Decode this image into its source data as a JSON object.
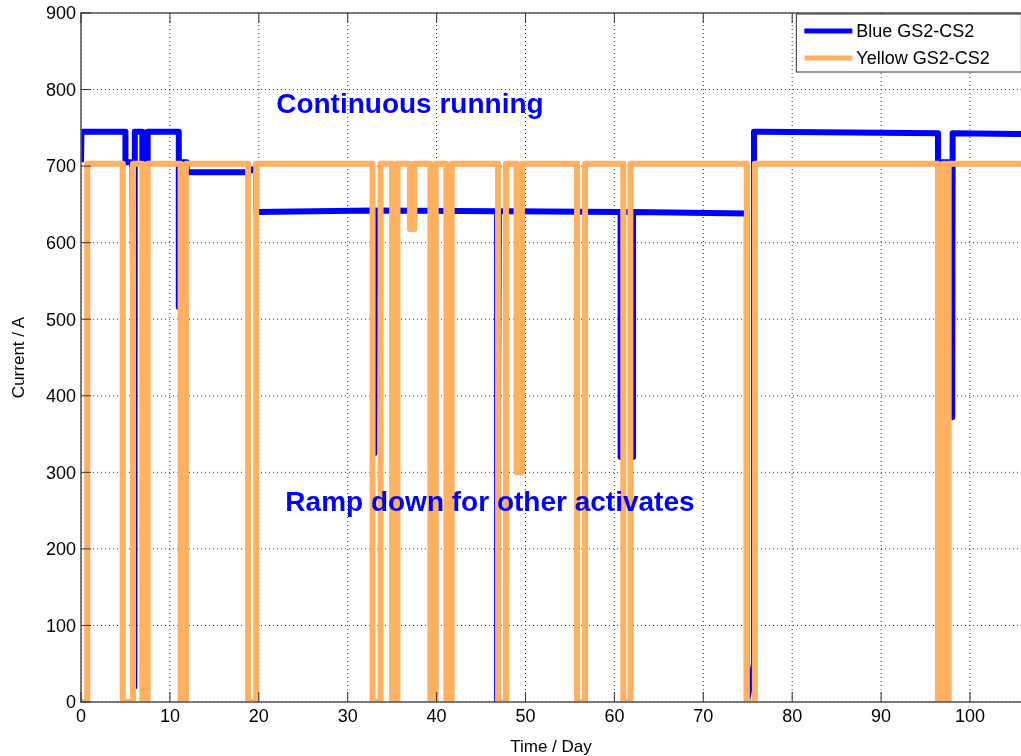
{
  "chart_data": {
    "type": "line",
    "xlabel": "Time / Day",
    "ylabel": "Current / A",
    "xlim": [
      0,
      106
    ],
    "ylim": [
      0,
      900
    ],
    "xticks": [
      0,
      10,
      20,
      30,
      40,
      50,
      60,
      70,
      80,
      90,
      100
    ],
    "yticks": [
      0,
      100,
      200,
      300,
      400,
      500,
      600,
      700,
      800,
      900
    ],
    "grid": true,
    "legend": "top right",
    "line_style": "solid",
    "annotations": [
      "Continuous running",
      "Ramp down for other activates"
    ],
    "series": [
      {
        "name": "Blue GS2-CS2",
        "color": "#0000ff",
        "x": [
          0,
          0.05,
          5.0,
          5.0,
          5.8,
          6.0,
          6.05,
          6.9,
          6.9,
          7.5,
          7.5,
          11.0,
          11.0,
          11.1,
          11.9,
          11.9,
          18.7,
          19.7,
          19.7,
          32.9,
          33.0,
          33.1,
          46.8,
          46.8,
          46.9,
          47.0,
          60.7,
          60.7,
          60.8,
          61.9,
          62.1,
          62.1,
          74.9,
          74.9,
          75.7,
          75.7,
          96.4,
          96.4,
          97.9,
          98.0,
          98.05,
          106
        ],
        "values": [
          705,
          745,
          745,
          705,
          705,
          20,
          745,
          745,
          705,
          705,
          745,
          745,
          516,
          705,
          705,
          692,
          692,
          698,
          640,
          642,
          325,
          642,
          641,
          0,
          350,
          641,
          640,
          320,
          640,
          640,
          320,
          640,
          638,
          0,
          50,
          745,
          743,
          705,
          705,
          372,
          743,
          742
        ]
      },
      {
        "name": "Yellow GS2-CS2",
        "color": "#ffb060",
        "x": [
          0,
          0.7,
          0.7,
          4.7,
          4.7,
          5.85,
          5.85,
          6.9,
          6.9,
          7.5,
          7.5,
          11.2,
          11.2,
          11.8,
          11.8,
          18.8,
          18.8,
          19.7,
          19.7,
          32.8,
          32.8,
          33.7,
          33.7,
          35.0,
          35.0,
          35.6,
          35.6,
          37.0,
          37.0,
          37.5,
          37.5,
          39.3,
          39.3,
          39.9,
          39.9,
          41.1,
          41.1,
          41.7,
          41.7,
          46.9,
          46.9,
          47.8,
          47.8,
          49.0,
          49.0,
          49.6,
          49.6,
          55.8,
          55.8,
          56.7,
          56.7,
          61.0,
          61.0,
          61.8,
          61.8,
          74.9,
          74.9,
          75.8,
          75.8,
          96.4,
          96.4,
          97.0,
          97.0,
          97.2,
          97.2,
          97.6,
          97.6,
          106
        ],
        "values": [
          0,
          0,
          703,
          703,
          0,
          0,
          703,
          703,
          0,
          0,
          703,
          703,
          0,
          0,
          703,
          703,
          0,
          0,
          703,
          703,
          0,
          0,
          703,
          703,
          0,
          0,
          703,
          703,
          618,
          618,
          703,
          703,
          0,
          0,
          703,
          703,
          0,
          0,
          703,
          703,
          0,
          0,
          703,
          703,
          300,
          300,
          703,
          703,
          0,
          0,
          703,
          703,
          0,
          0,
          703,
          703,
          0,
          0,
          703,
          703,
          0,
          0,
          703,
          703,
          0,
          0,
          703,
          703
        ]
      }
    ]
  }
}
